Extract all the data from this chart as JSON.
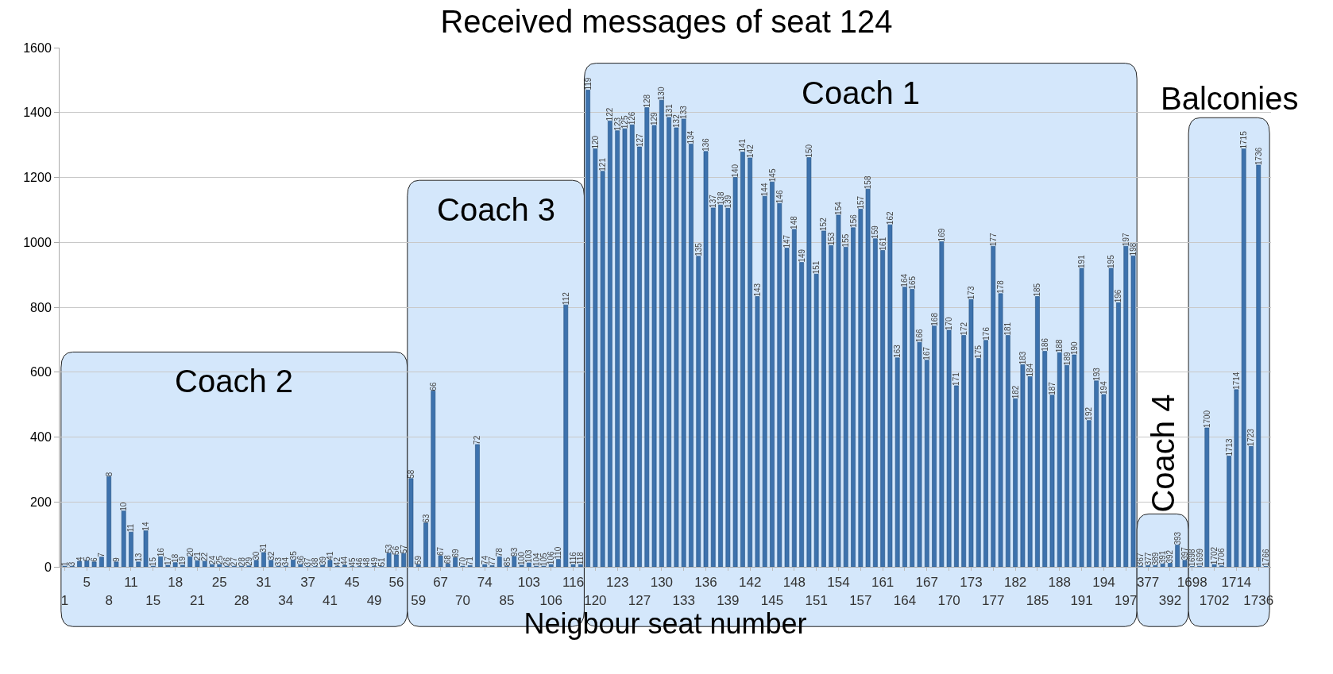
{
  "chart_data": {
    "type": "bar",
    "title": "Received messages of seat 124",
    "xlabel": "Neigbour seat number",
    "categories": [
      "1",
      "3",
      "4",
      "5",
      "6",
      "7",
      "8",
      "9",
      "10",
      "11",
      "13",
      "14",
      "15",
      "16",
      "17",
      "18",
      "19",
      "20",
      "21",
      "22",
      "24",
      "25",
      "26",
      "27",
      "28",
      "29",
      "30",
      "31",
      "32",
      "33",
      "34",
      "35",
      "36",
      "37",
      "38",
      "39",
      "41",
      "42",
      "44",
      "45",
      "46",
      "48",
      "49",
      "51",
      "53",
      "56",
      "57",
      "58",
      "59",
      "63",
      "66",
      "67",
      "68",
      "69",
      "70",
      "71",
      "72",
      "74",
      "77",
      "78",
      "85",
      "93",
      "100",
      "103",
      "104",
      "105",
      "106",
      "110",
      "112",
      "116",
      "118",
      "119",
      "120",
      "121",
      "122",
      "123",
      "125",
      "126",
      "127",
      "128",
      "129",
      "130",
      "131",
      "132",
      "133",
      "134",
      "135",
      "136",
      "137",
      "138",
      "139",
      "140",
      "141",
      "142",
      "143",
      "144",
      "145",
      "146",
      "147",
      "148",
      "149",
      "150",
      "151",
      "152",
      "153",
      "154",
      "155",
      "156",
      "157",
      "158",
      "159",
      "161",
      "162",
      "163",
      "164",
      "165",
      "166",
      "167",
      "168",
      "169",
      "170",
      "171",
      "172",
      "173",
      "175",
      "176",
      "177",
      "178",
      "181",
      "182",
      "183",
      "184",
      "185",
      "186",
      "187",
      "188",
      "189",
      "190",
      "191",
      "192",
      "193",
      "194",
      "195",
      "196",
      "197",
      "198",
      "367",
      "377",
      "389",
      "391",
      "392",
      "393",
      "397",
      "1698",
      "1699",
      "1700",
      "1702",
      "1706",
      "1713",
      "1714",
      "1715",
      "1723",
      "1736",
      "1766"
    ],
    "values": [
      2,
      2,
      17,
      18,
      15,
      30,
      278,
      15,
      172,
      107,
      15,
      111,
      2,
      31,
      5,
      13,
      5,
      31,
      19,
      17,
      7,
      7,
      2,
      2,
      2,
      3,
      20,
      44,
      20,
      2,
      2,
      21,
      7,
      1,
      1,
      5,
      20,
      2,
      5,
      1,
      1,
      1,
      2,
      1,
      42,
      37,
      41,
      272,
      7,
      135,
      542,
      34,
      9,
      28,
      2,
      4,
      377,
      7,
      4,
      31,
      2,
      32,
      5,
      12,
      2,
      2,
      7,
      23,
      807,
      7,
      7,
      1469,
      1288,
      1219,
      1374,
      1344,
      1350,
      1362,
      1294,
      1415,
      1360,
      1438,
      1385,
      1353,
      1380,
      1303,
      957,
      1280,
      1106,
      1115,
      1105,
      1200,
      1278,
      1260,
      833,
      1142,
      1186,
      1120,
      982,
      1040,
      938,
      1261,
      902,
      1035,
      990,
      1084,
      985,
      1045,
      1102,
      1164,
      1011,
      975,
      1054,
      644,
      862,
      855,
      692,
      637,
      742,
      1002,
      729,
      558,
      713,
      824,
      642,
      698,
      988,
      842,
      713,
      518,
      623,
      586,
      833,
      664,
      529,
      660,
      621,
      653,
      920,
      451,
      573,
      531,
      920,
      814,
      988,
      958,
      2,
      4,
      4,
      9,
      11,
      67,
      20,
      1,
      2,
      428,
      7,
      3,
      341,
      546,
      1288,
      371,
      1238,
      1
    ],
    "color": "#3d72ad",
    "ylim": [
      0,
      1600
    ],
    "yticks": [
      0,
      200,
      400,
      600,
      800,
      1000,
      1200,
      1400,
      1600
    ],
    "grid": "y",
    "bands": [
      {
        "axis": "x",
        "from": "1",
        "to": "57",
        "label": "Coach 2",
        "color": "#d4e7fb"
      },
      {
        "axis": "x",
        "from": "58",
        "to": "118",
        "label": "Coach 3",
        "color": "#d4e7fb"
      },
      {
        "axis": "x",
        "from": "119",
        "to": "198",
        "label": "Coach 1",
        "color": "#d4e7fb"
      },
      {
        "axis": "x",
        "from": "367",
        "to": "397",
        "label": "Coach 4",
        "color": "#d4e7fb"
      },
      {
        "axis": "x",
        "from": "1698",
        "to": "1766",
        "label": "Balconies",
        "color": "#d4e7fb"
      }
    ]
  }
}
